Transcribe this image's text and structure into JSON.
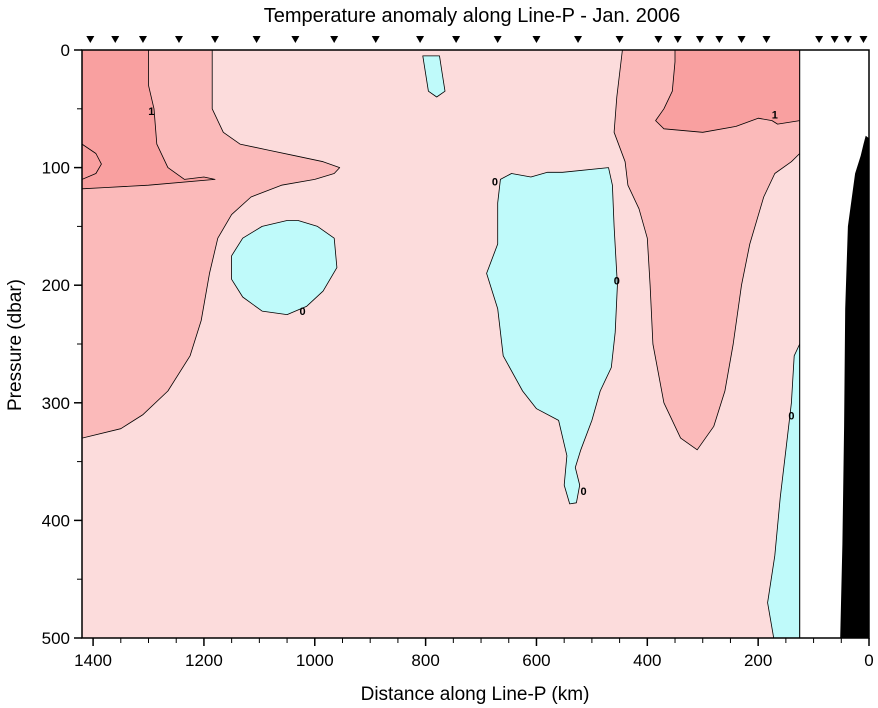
{
  "chart_data": {
    "type": "heatmap",
    "title": "Temperature anomaly along Line-P - Jan. 2006",
    "xlabel": "Distance along Line-P (km)",
    "ylabel": "Pressure (dbar)",
    "xlim": [
      1420,
      0
    ],
    "ylim": [
      500,
      0
    ],
    "x_reversed": true,
    "y_reversed": true,
    "x_ticks": [
      1400,
      1200,
      1000,
      800,
      600,
      400,
      200,
      0
    ],
    "x_tick_labels": [
      "1400",
      "1200",
      "1000",
      "800",
      "600",
      "400",
      "200",
      "0"
    ],
    "y_ticks": [
      0,
      100,
      200,
      300,
      400,
      500
    ],
    "y_tick_labels": [
      "0",
      "100",
      "200",
      "300",
      "400",
      "500"
    ],
    "station_markers_km": [
      1405,
      1360,
      1310,
      1245,
      1180,
      1105,
      1035,
      965,
      890,
      810,
      745,
      670,
      600,
      525,
      450,
      380,
      345,
      305,
      270,
      230,
      185,
      90,
      62,
      38,
      10
    ],
    "contour_levels": [
      0,
      1
    ],
    "contour_labels": [
      {
        "text": "1",
        "x": 1295,
        "y": 52
      },
      {
        "text": "1",
        "x": 170,
        "y": 55
      },
      {
        "text": "0",
        "x": 675,
        "y": 112
      },
      {
        "text": "0",
        "x": 455,
        "y": 196
      },
      {
        "text": "0",
        "x": 1022,
        "y": 222
      },
      {
        "text": "0",
        "x": 515,
        "y": 375
      },
      {
        "text": "0",
        "x": 140,
        "y": 311
      }
    ],
    "fill_colors": {
      "negative": "#bffafa",
      "zero_to_one": "#fcdcdc",
      "one_to_two": "#fbbaba",
      "above_two": "#f9a0a0",
      "bathymetry": "#000000",
      "no_data": "#ffffff"
    },
    "regions": [
      {
        "level": "zero_to_one",
        "points": [
          [
            1420,
            0
          ],
          [
            125,
            0
          ],
          [
            125,
            500
          ],
          [
            1420,
            500
          ]
        ]
      },
      {
        "level": "one_to_two",
        "points": [
          [
            1420,
            0
          ],
          [
            1185,
            0
          ],
          [
            1185,
            50
          ],
          [
            1165,
            70
          ],
          [
            1135,
            80
          ],
          [
            1085,
            85
          ],
          [
            1035,
            90
          ],
          [
            985,
            95
          ],
          [
            955,
            100
          ],
          [
            965,
            105
          ],
          [
            1000,
            110
          ],
          [
            1060,
            115
          ],
          [
            1115,
            125
          ],
          [
            1150,
            140
          ],
          [
            1175,
            160
          ],
          [
            1190,
            190
          ],
          [
            1205,
            230
          ],
          [
            1225,
            260
          ],
          [
            1265,
            290
          ],
          [
            1310,
            310
          ],
          [
            1350,
            322
          ],
          [
            1420,
            330
          ]
        ]
      },
      {
        "level": "above_two",
        "points": [
          [
            1420,
            0
          ],
          [
            1300,
            0
          ],
          [
            1300,
            30
          ],
          [
            1290,
            50
          ],
          [
            1285,
            80
          ],
          [
            1265,
            100
          ],
          [
            1235,
            110
          ],
          [
            1200,
            108
          ],
          [
            1180,
            110
          ],
          [
            1300,
            115
          ],
          [
            1380,
            117
          ],
          [
            1420,
            118
          ]
        ]
      },
      {
        "level": "above_two",
        "points": [
          [
            1420,
            80
          ],
          [
            1395,
            88
          ],
          [
            1385,
            97
          ],
          [
            1395,
            105
          ],
          [
            1420,
            110
          ]
        ]
      },
      {
        "level": "one_to_two",
        "points": [
          [
            445,
            0
          ],
          [
            125,
            0
          ],
          [
            125,
            88
          ],
          [
            140,
            95
          ],
          [
            170,
            105
          ],
          [
            190,
            125
          ],
          [
            215,
            165
          ],
          [
            230,
            200
          ],
          [
            245,
            250
          ],
          [
            260,
            290
          ],
          [
            280,
            320
          ],
          [
            310,
            340
          ],
          [
            340,
            330
          ],
          [
            370,
            300
          ],
          [
            390,
            250
          ],
          [
            395,
            200
          ],
          [
            400,
            160
          ],
          [
            415,
            135
          ],
          [
            435,
            115
          ],
          [
            440,
            95
          ],
          [
            460,
            70
          ],
          [
            455,
            40
          ]
        ]
      },
      {
        "level": "above_two",
        "points": [
          [
            350,
            0
          ],
          [
            125,
            0
          ],
          [
            125,
            60
          ],
          [
            165,
            63
          ],
          [
            175,
            60
          ],
          [
            200,
            58
          ],
          [
            240,
            65
          ],
          [
            300,
            70
          ],
          [
            370,
            67
          ],
          [
            385,
            60
          ],
          [
            370,
            50
          ],
          [
            355,
            35
          ],
          [
            350,
            10
          ]
        ]
      },
      {
        "level": "negative",
        "points": [
          [
            805,
            5
          ],
          [
            775,
            5
          ],
          [
            770,
            20
          ],
          [
            765,
            35
          ],
          [
            780,
            40
          ],
          [
            795,
            35
          ],
          [
            800,
            20
          ]
        ]
      },
      {
        "level": "negative",
        "points": [
          [
            645,
            105
          ],
          [
            610,
            108
          ],
          [
            580,
            104
          ],
          [
            553,
            104
          ],
          [
            470,
            100
          ],
          [
            463,
            115
          ],
          [
            460,
            150
          ],
          [
            454,
            200
          ],
          [
            458,
            240
          ],
          [
            465,
            270
          ],
          [
            485,
            290
          ],
          [
            500,
            315
          ],
          [
            520,
            340
          ],
          [
            530,
            355
          ],
          [
            522,
            370
          ],
          [
            528,
            385
          ],
          [
            540,
            386
          ],
          [
            550,
            370
          ],
          [
            545,
            345
          ],
          [
            560,
            315
          ],
          [
            600,
            305
          ],
          [
            625,
            290
          ],
          [
            660,
            260
          ],
          [
            670,
            220
          ],
          [
            690,
            190
          ],
          [
            670,
            165
          ],
          [
            670,
            130
          ],
          [
            665,
            110
          ]
        ]
      },
      {
        "level": "negative",
        "points": [
          [
            1050,
            145
          ],
          [
            1095,
            150
          ],
          [
            1130,
            160
          ],
          [
            1150,
            175
          ],
          [
            1150,
            195
          ],
          [
            1130,
            210
          ],
          [
            1095,
            222
          ],
          [
            1050,
            225
          ],
          [
            1015,
            218
          ],
          [
            985,
            205
          ],
          [
            960,
            185
          ],
          [
            965,
            160
          ],
          [
            995,
            150
          ],
          [
            1030,
            145
          ]
        ]
      },
      {
        "level": "negative",
        "points": [
          [
            125,
            250
          ],
          [
            135,
            260
          ],
          [
            140,
            300
          ],
          [
            150,
            340
          ],
          [
            160,
            380
          ],
          [
            170,
            430
          ],
          [
            183,
            470
          ],
          [
            172,
            500
          ],
          [
            125,
            500
          ]
        ]
      },
      {
        "level": "no_data",
        "points": [
          [
            125,
            0
          ],
          [
            0,
            0
          ],
          [
            0,
            500
          ],
          [
            125,
            500
          ]
        ]
      },
      {
        "level": "bathymetry",
        "points": [
          [
            52,
            500
          ],
          [
            48,
            420
          ],
          [
            45,
            320
          ],
          [
            43,
            220
          ],
          [
            38,
            150
          ],
          [
            25,
            105
          ],
          [
            15,
            90
          ],
          [
            10,
            80
          ],
          [
            6,
            73
          ],
          [
            0,
            75
          ],
          [
            0,
            500
          ]
        ]
      }
    ]
  }
}
